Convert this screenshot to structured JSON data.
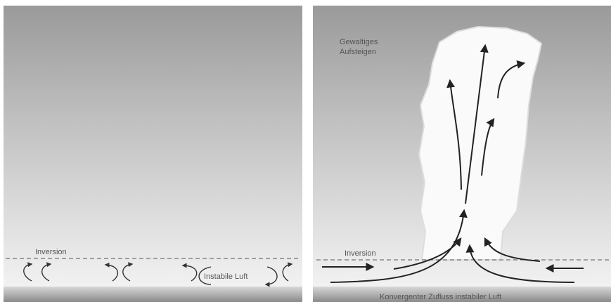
{
  "left_panel": {
    "inversion_label": "Inversion",
    "air_label": "Instabile Luft"
  },
  "right_panel": {
    "cloud_label_lines": [
      "Gewaltiges",
      "Aufsteigen"
    ],
    "inversion_label": "Inversion",
    "inflow_label": "Konvergenter Zufluss instabiler Luft"
  }
}
